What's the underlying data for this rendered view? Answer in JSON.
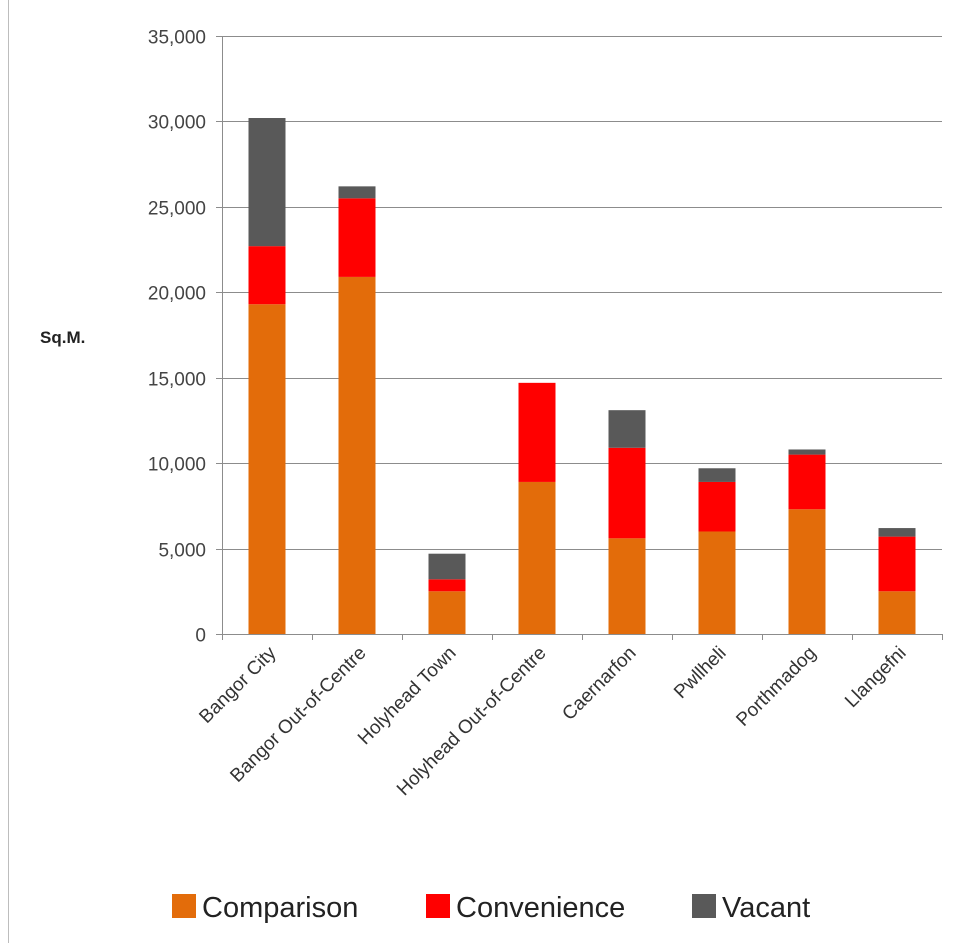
{
  "chart_data": {
    "type": "bar",
    "stacked": true,
    "ylabel": "Sq.M.",
    "ylim": [
      0,
      35000
    ],
    "yticks": [
      "0",
      "5,000",
      "10,000",
      "15,000",
      "20,000",
      "25,000",
      "30,000",
      "35,000"
    ],
    "ytick_values": [
      0,
      5000,
      10000,
      15000,
      20000,
      25000,
      30000,
      35000
    ],
    "grid": true,
    "legend_position": "bottom",
    "categories": [
      "Bangor City",
      "Bangor Out-of-Centre",
      "Holyhead Town",
      "Holyhead Out-of-Centre",
      "Caernarfon",
      "Pwllheli",
      "Porthmadog",
      "Llangefni"
    ],
    "series": [
      {
        "name": "Comparison",
        "color": "#e36c0a",
        "values": [
          19300,
          20900,
          2500,
          8900,
          5600,
          6000,
          7300,
          2500
        ]
      },
      {
        "name": "Convenience",
        "color": "#ff0000",
        "values": [
          3400,
          4600,
          700,
          5800,
          5300,
          2900,
          3200,
          3200
        ]
      },
      {
        "name": "Vacant",
        "color": "#595959",
        "values": [
          7500,
          700,
          1500,
          0,
          2200,
          800,
          300,
          500
        ]
      }
    ]
  }
}
